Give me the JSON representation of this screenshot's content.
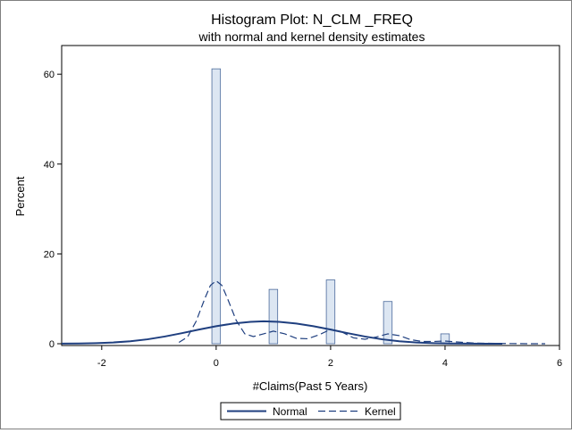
{
  "chart_data": {
    "type": "bar",
    "title": "Histogram Plot: N_CLM _FREQ",
    "subtitle": "with normal and kernel density estimates",
    "xlabel": "#Claims(Past 5 Years)",
    "ylabel": "Percent",
    "xlim": [
      -2.7,
      6.0
    ],
    "ylim": [
      0,
      65
    ],
    "xticks": [
      -2,
      0,
      2,
      4,
      6
    ],
    "yticks": [
      0,
      20,
      40,
      60
    ],
    "bar_width": 0.15,
    "bars": [
      {
        "x": 0,
        "value": 61.2
      },
      {
        "x": 1,
        "value": 12.1
      },
      {
        "x": 2,
        "value": 14.2
      },
      {
        "x": 3,
        "value": 9.4
      },
      {
        "x": 4,
        "value": 2.2
      }
    ],
    "series": [
      {
        "name": "Normal",
        "style": "solid",
        "x": [
          -2.7,
          -2.4,
          -2.1,
          -1.8,
          -1.5,
          -1.2,
          -0.9,
          -0.6,
          -0.3,
          0.0,
          0.3,
          0.6,
          0.83,
          1.1,
          1.4,
          1.7,
          2.0,
          2.3,
          2.6,
          2.9,
          3.2,
          3.5,
          3.8,
          4.1,
          4.4,
          4.7,
          5.0
        ],
        "values": [
          0.02,
          0.05,
          0.13,
          0.28,
          0.55,
          0.98,
          1.6,
          2.35,
          3.15,
          3.9,
          4.5,
          4.88,
          5.0,
          4.88,
          4.5,
          3.9,
          3.15,
          2.35,
          1.6,
          0.98,
          0.55,
          0.28,
          0.13,
          0.05,
          0.02,
          0.01,
          0.0
        ]
      },
      {
        "name": "Kernel",
        "style": "dashed",
        "x": [
          -0.65,
          -0.5,
          -0.35,
          -0.2,
          -0.1,
          0.0,
          0.1,
          0.2,
          0.35,
          0.5,
          0.65,
          0.8,
          1.0,
          1.2,
          1.4,
          1.6,
          1.8,
          2.0,
          2.2,
          2.4,
          2.6,
          2.8,
          3.0,
          3.2,
          3.4,
          3.6,
          3.8,
          4.0,
          4.2,
          4.5,
          5.0,
          5.5,
          5.75
        ],
        "values": [
          0.3,
          1.5,
          5.0,
          10.0,
          13.0,
          14.0,
          13.0,
          10.0,
          5.2,
          2.2,
          1.6,
          2.1,
          2.8,
          2.2,
          1.2,
          1.1,
          2.0,
          3.2,
          2.6,
          1.3,
          1.0,
          1.5,
          2.2,
          1.8,
          0.9,
          0.5,
          0.5,
          0.6,
          0.4,
          0.15,
          0.05,
          0.0,
          0.0
        ]
      }
    ],
    "legend": {
      "placement": "bottom",
      "items": [
        {
          "label": "Normal",
          "style": "solid"
        },
        {
          "label": "Kernel",
          "style": "dashed"
        }
      ]
    },
    "colors": {
      "curve": "#1f3f7f",
      "bar_fill": "#dce6f2",
      "bar_stroke": "#4b6a9b",
      "axis": "#000000",
      "frame": "#7f7f7f"
    }
  }
}
